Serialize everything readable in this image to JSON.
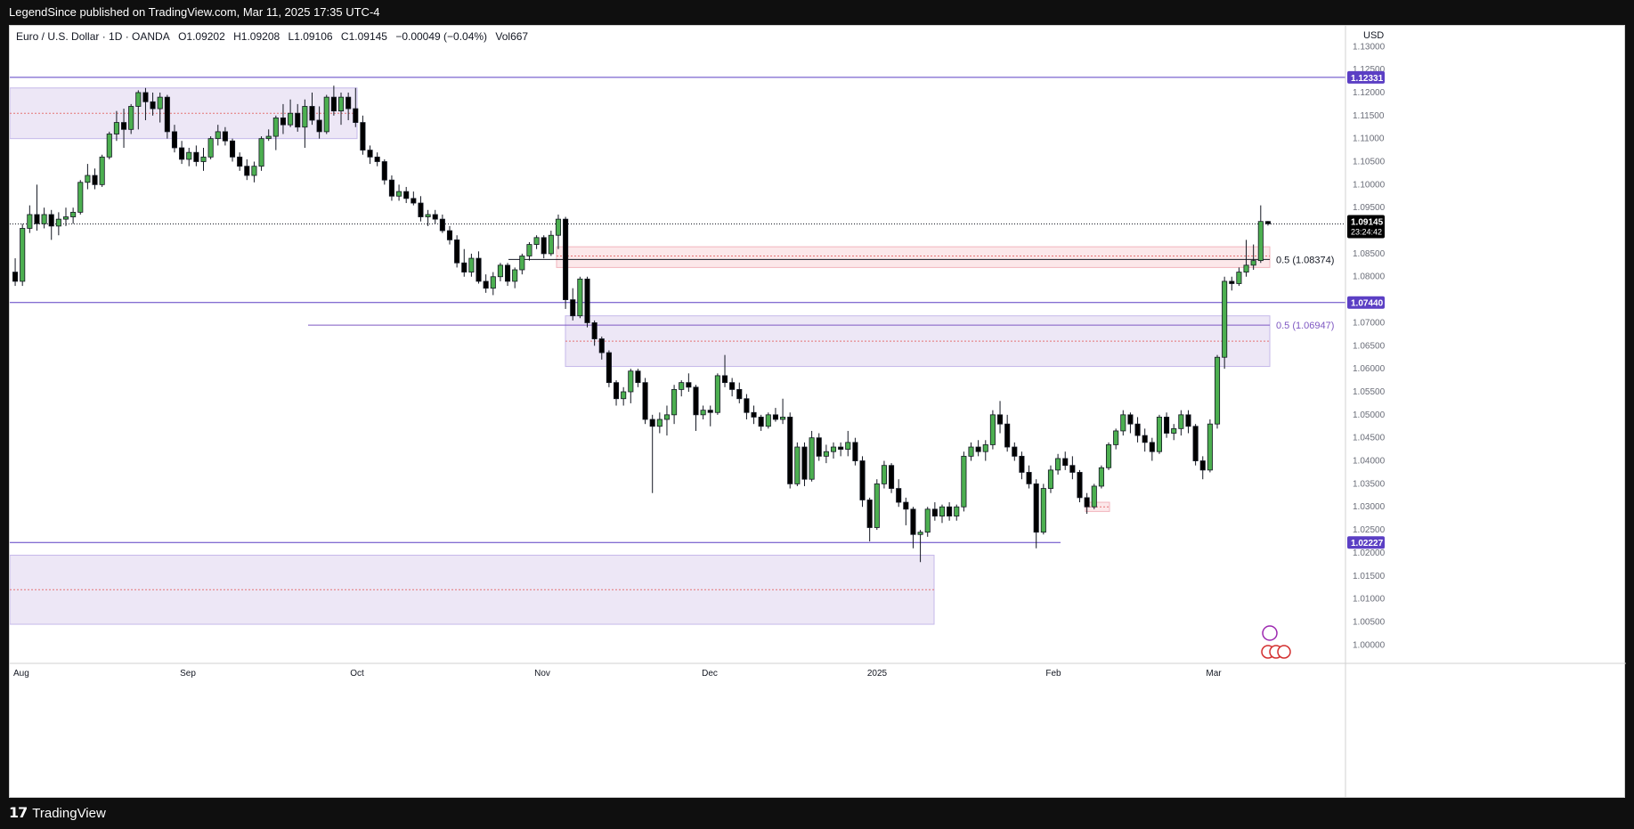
{
  "header": {
    "published_by": "LegendSince published on TradingView.com, Mar 11, 2025 17:35 UTC-4"
  },
  "legend": {
    "symbol": "Euro / U.S. Dollar · 1D · OANDA",
    "open": "O1.09202",
    "high": "H1.09208",
    "low": "L1.09106",
    "close": "C1.09145",
    "change": "−0.00049 (−0.04%)",
    "volume": "Vol667"
  },
  "footer": {
    "brand": "TradingView",
    "logo_icon": "tradingview-logo-icon"
  },
  "colors": {
    "up": "#4caf50",
    "down": "#000000",
    "zone_purple": "#ede7f6",
    "zone_red": "#fce8ea",
    "level_line": "#5b3fc4",
    "price_badge": "#000000"
  },
  "chart_data": {
    "type": "candlestick",
    "currency": "USD",
    "ylim": [
      0.996,
      1.1345
    ],
    "y_ticks": [
      "1.13000",
      "1.12500",
      "1.12000",
      "1.11500",
      "1.11000",
      "1.10500",
      "1.10000",
      "1.09500",
      "1.08500",
      "1.08000",
      "1.07000",
      "1.06500",
      "1.06000",
      "1.05500",
      "1.05000",
      "1.04500",
      "1.04000",
      "1.03500",
      "1.03000",
      "1.02500",
      "1.02000",
      "1.01500",
      "1.01000",
      "1.00500",
      "1.00000"
    ],
    "x_ticks": [
      "Aug",
      "Sep",
      "Oct",
      "Nov",
      "Dec",
      "2025",
      "Feb",
      "Mar"
    ],
    "current_price": "1.09145",
    "countdown": "23:24:42",
    "levels": [
      {
        "label": "1.12331",
        "value": 1.12331
      },
      {
        "label": "1.07440",
        "value": 1.0744
      },
      {
        "label": "1.02227",
        "value": 1.02227
      }
    ],
    "fib_labels": [
      {
        "label": "0.5 (1.08374)",
        "value": 1.08374
      },
      {
        "label": "0.5 (1.06947)",
        "value": 1.06947
      }
    ],
    "candles_ohlc": [
      [
        1.081,
        1.084,
        1.078,
        1.079
      ],
      [
        1.079,
        1.0915,
        1.078,
        1.0905
      ],
      [
        1.0905,
        1.0955,
        1.0895,
        1.0935
      ],
      [
        1.0935,
        1.1,
        1.09,
        1.0915
      ],
      [
        1.0915,
        1.095,
        1.0905,
        1.0935
      ],
      [
        1.0935,
        1.0945,
        1.088,
        1.091
      ],
      [
        1.091,
        1.094,
        1.089,
        1.0925
      ],
      [
        1.0925,
        1.095,
        1.091,
        1.093
      ],
      [
        1.093,
        1.095,
        1.0915,
        1.094
      ],
      [
        1.094,
        1.101,
        1.0935,
        1.1005
      ],
      [
        1.1005,
        1.1045,
        1.099,
        1.102
      ],
      [
        1.102,
        1.1035,
        1.099,
        1.1
      ],
      [
        1.1,
        1.1065,
        1.0995,
        1.106
      ],
      [
        1.106,
        1.1115,
        1.1055,
        1.111
      ],
      [
        1.111,
        1.116,
        1.1095,
        1.1135
      ],
      [
        1.1135,
        1.1165,
        1.108,
        1.112
      ],
      [
        1.112,
        1.1175,
        1.111,
        1.117
      ],
      [
        1.117,
        1.1205,
        1.112,
        1.12
      ],
      [
        1.12,
        1.121,
        1.114,
        1.118
      ],
      [
        1.118,
        1.12,
        1.115,
        1.1165
      ],
      [
        1.1165,
        1.12,
        1.1135,
        1.119
      ],
      [
        1.119,
        1.1195,
        1.11,
        1.1115
      ],
      [
        1.1115,
        1.113,
        1.107,
        1.108
      ],
      [
        1.108,
        1.1095,
        1.1045,
        1.1055
      ],
      [
        1.1055,
        1.108,
        1.104,
        1.107
      ],
      [
        1.107,
        1.1085,
        1.104,
        1.105
      ],
      [
        1.105,
        1.108,
        1.103,
        1.106
      ],
      [
        1.106,
        1.1105,
        1.1055,
        1.11
      ],
      [
        1.11,
        1.113,
        1.1085,
        1.1115
      ],
      [
        1.1115,
        1.1125,
        1.1085,
        1.1095
      ],
      [
        1.1095,
        1.11,
        1.105,
        1.106
      ],
      [
        1.106,
        1.107,
        1.103,
        1.104
      ],
      [
        1.104,
        1.1055,
        1.101,
        1.102
      ],
      [
        1.102,
        1.105,
        1.1005,
        1.104
      ],
      [
        1.104,
        1.1105,
        1.103,
        1.11
      ],
      [
        1.11,
        1.112,
        1.1095,
        1.1105
      ],
      [
        1.1105,
        1.115,
        1.1075,
        1.1145
      ],
      [
        1.1145,
        1.1175,
        1.111,
        1.113
      ],
      [
        1.113,
        1.1185,
        1.1125,
        1.1155
      ],
      [
        1.1155,
        1.1175,
        1.1115,
        1.1125
      ],
      [
        1.1125,
        1.1185,
        1.108,
        1.117
      ],
      [
        1.117,
        1.12,
        1.113,
        1.114
      ],
      [
        1.114,
        1.117,
        1.11,
        1.1115
      ],
      [
        1.1115,
        1.1195,
        1.111,
        1.119
      ],
      [
        1.119,
        1.1215,
        1.115,
        1.116
      ],
      [
        1.116,
        1.12,
        1.113,
        1.119
      ],
      [
        1.119,
        1.12,
        1.114,
        1.1165
      ],
      [
        1.1165,
        1.121,
        1.1125,
        1.1135
      ],
      [
        1.1135,
        1.115,
        1.1065,
        1.1075
      ],
      [
        1.1075,
        1.1085,
        1.1045,
        1.106
      ],
      [
        1.106,
        1.107,
        1.104,
        1.105
      ],
      [
        1.105,
        1.1055,
        1.1,
        1.101
      ],
      [
        1.101,
        1.102,
        1.0965,
        1.0975
      ],
      [
        1.0975,
        1.1,
        1.0965,
        1.0985
      ],
      [
        1.0985,
        1.0995,
        1.096,
        1.097
      ],
      [
        1.097,
        1.0985,
        1.0955,
        1.096
      ],
      [
        1.096,
        1.0975,
        1.092,
        1.093
      ],
      [
        1.093,
        1.0945,
        1.091,
        1.0935
      ],
      [
        1.0935,
        1.0945,
        1.0915,
        1.0925
      ],
      [
        1.0925,
        1.0935,
        1.0895,
        1.09
      ],
      [
        1.09,
        1.091,
        1.087,
        1.088
      ],
      [
        1.088,
        1.089,
        1.082,
        1.083
      ],
      [
        1.083,
        1.086,
        1.08,
        1.081
      ],
      [
        1.081,
        1.085,
        1.08,
        1.084
      ],
      [
        1.084,
        1.0855,
        1.0785,
        1.079
      ],
      [
        1.079,
        1.0805,
        1.0765,
        1.0775
      ],
      [
        1.0775,
        1.081,
        1.076,
        1.08
      ],
      [
        1.08,
        1.083,
        1.079,
        1.0825
      ],
      [
        1.0825,
        1.083,
        1.078,
        1.079
      ],
      [
        1.079,
        1.082,
        1.0775,
        1.0815
      ],
      [
        1.0815,
        1.085,
        1.0805,
        1.0845
      ],
      [
        1.0845,
        1.0875,
        1.0835,
        1.087
      ],
      [
        1.087,
        1.089,
        1.086,
        1.0885
      ],
      [
        1.0885,
        1.089,
        1.084,
        1.085
      ],
      [
        1.085,
        1.09,
        1.0845,
        1.089
      ],
      [
        1.089,
        1.0935,
        1.086,
        1.0925
      ],
      [
        1.0925,
        1.093,
        1.073,
        1.075
      ],
      [
        1.075,
        1.0775,
        1.0705,
        1.0715
      ],
      [
        1.0715,
        1.08,
        1.071,
        1.0795
      ],
      [
        1.0795,
        1.08,
        1.069,
        1.07
      ],
      [
        1.07,
        1.0705,
        1.065,
        1.0665
      ],
      [
        1.0665,
        1.067,
        1.062,
        1.0635
      ],
      [
        1.0635,
        1.064,
        1.056,
        1.057
      ],
      [
        1.057,
        1.0575,
        1.052,
        1.0535
      ],
      [
        1.0535,
        1.056,
        1.052,
        1.055
      ],
      [
        1.055,
        1.06,
        1.0525,
        1.0595
      ],
      [
        1.0595,
        1.06,
        1.056,
        1.057
      ],
      [
        1.057,
        1.058,
        1.048,
        1.049
      ],
      [
        1.049,
        1.05,
        1.033,
        1.0475
      ],
      [
        1.0475,
        1.0505,
        1.046,
        1.049
      ],
      [
        1.049,
        1.052,
        1.0455,
        1.05
      ],
      [
        1.05,
        1.0565,
        1.048,
        1.0555
      ],
      [
        1.0555,
        1.0575,
        1.054,
        1.057
      ],
      [
        1.057,
        1.059,
        1.055,
        1.056
      ],
      [
        1.056,
        1.0565,
        1.0465,
        1.05
      ],
      [
        1.05,
        1.052,
        1.049,
        1.051
      ],
      [
        1.051,
        1.052,
        1.0475,
        1.0505
      ],
      [
        1.0505,
        1.059,
        1.05,
        1.0585
      ],
      [
        1.0585,
        1.063,
        1.056,
        1.057
      ],
      [
        1.057,
        1.058,
        1.054,
        1.0555
      ],
      [
        1.0555,
        1.057,
        1.0525,
        1.0535
      ],
      [
        1.0535,
        1.0545,
        1.049,
        1.0505
      ],
      [
        1.0505,
        1.052,
        1.048,
        1.0495
      ],
      [
        1.0495,
        1.05,
        1.0465,
        1.0475
      ],
      [
        1.0475,
        1.0505,
        1.047,
        1.05
      ],
      [
        1.05,
        1.0515,
        1.0485,
        1.049
      ],
      [
        1.049,
        1.0535,
        1.048,
        1.0495
      ],
      [
        1.0495,
        1.0505,
        1.034,
        1.035
      ],
      [
        1.035,
        1.044,
        1.0345,
        1.043
      ],
      [
        1.043,
        1.044,
        1.0345,
        1.036
      ],
      [
        1.036,
        1.0465,
        1.0355,
        1.045
      ],
      [
        1.045,
        1.046,
        1.04,
        1.041
      ],
      [
        1.041,
        1.0435,
        1.0395,
        1.042
      ],
      [
        1.042,
        1.044,
        1.0405,
        1.043
      ],
      [
        1.043,
        1.044,
        1.041,
        1.0425
      ],
      [
        1.0425,
        1.0465,
        1.041,
        1.044
      ],
      [
        1.044,
        1.045,
        1.039,
        1.04
      ],
      [
        1.04,
        1.041,
        1.03,
        1.0315
      ],
      [
        1.0315,
        1.032,
        1.0225,
        1.0255
      ],
      [
        1.0255,
        1.036,
        1.025,
        1.035
      ],
      [
        1.035,
        1.04,
        1.034,
        1.039
      ],
      [
        1.039,
        1.0395,
        1.033,
        1.034
      ],
      [
        1.034,
        1.036,
        1.03,
        1.031
      ],
      [
        1.031,
        1.032,
        1.026,
        1.0295
      ],
      [
        1.0295,
        1.03,
        1.021,
        1.024
      ],
      [
        1.024,
        1.025,
        1.018,
        1.0245
      ],
      [
        1.0245,
        1.03,
        1.0235,
        1.0295
      ],
      [
        1.0295,
        1.031,
        1.027,
        1.028
      ],
      [
        1.028,
        1.0305,
        1.0265,
        1.03
      ],
      [
        1.03,
        1.031,
        1.027,
        1.028
      ],
      [
        1.028,
        1.0305,
        1.027,
        1.03
      ],
      [
        1.03,
        1.042,
        1.029,
        1.041
      ],
      [
        1.041,
        1.044,
        1.04,
        1.043
      ],
      [
        1.043,
        1.0445,
        1.041,
        1.042
      ],
      [
        1.042,
        1.0445,
        1.04,
        1.0435
      ],
      [
        1.0435,
        1.051,
        1.0425,
        1.05
      ],
      [
        1.05,
        1.053,
        1.046,
        1.048
      ],
      [
        1.048,
        1.05,
        1.042,
        1.043
      ],
      [
        1.043,
        1.044,
        1.04,
        1.041
      ],
      [
        1.041,
        1.042,
        1.036,
        1.0375
      ],
      [
        1.0375,
        1.039,
        1.034,
        1.035
      ],
      [
        1.035,
        1.036,
        1.021,
        1.0245
      ],
      [
        1.0245,
        1.035,
        1.024,
        1.034
      ],
      [
        1.034,
        1.039,
        1.033,
        1.038
      ],
      [
        1.038,
        1.0415,
        1.037,
        1.0405
      ],
      [
        1.0405,
        1.042,
        1.038,
        1.039
      ],
      [
        1.039,
        1.041,
        1.036,
        1.0375
      ],
      [
        1.0375,
        1.038,
        1.031,
        1.032
      ],
      [
        1.032,
        1.033,
        1.0285,
        1.03
      ],
      [
        1.03,
        1.035,
        1.0295,
        1.0345
      ],
      [
        1.0345,
        1.039,
        1.034,
        1.0385
      ],
      [
        1.0385,
        1.044,
        1.038,
        1.0435
      ],
      [
        1.0435,
        1.047,
        1.0425,
        1.0465
      ],
      [
        1.0465,
        1.051,
        1.0455,
        1.05
      ],
      [
        1.05,
        1.0505,
        1.046,
        1.048
      ],
      [
        1.048,
        1.0495,
        1.044,
        1.0455
      ],
      [
        1.0455,
        1.047,
        1.042,
        1.044
      ],
      [
        1.044,
        1.045,
        1.04,
        1.042
      ],
      [
        1.042,
        1.05,
        1.0415,
        1.0495
      ],
      [
        1.0495,
        1.0505,
        1.045,
        1.046
      ],
      [
        1.046,
        1.048,
        1.0445,
        1.047
      ],
      [
        1.047,
        1.051,
        1.0455,
        1.05
      ],
      [
        1.05,
        1.051,
        1.046,
        1.0475
      ],
      [
        1.0475,
        1.048,
        1.039,
        1.04
      ],
      [
        1.04,
        1.041,
        1.036,
        1.038
      ],
      [
        1.038,
        1.049,
        1.0375,
        1.048
      ],
      [
        1.048,
        1.063,
        1.047,
        1.0625
      ],
      [
        1.0625,
        1.08,
        1.06,
        1.079
      ],
      [
        1.079,
        1.08,
        1.077,
        1.0785
      ],
      [
        1.0785,
        1.082,
        1.078,
        1.081
      ],
      [
        1.081,
        1.088,
        1.08,
        1.0825
      ],
      [
        1.0825,
        1.087,
        1.0815,
        1.0835
      ],
      [
        1.0835,
        1.0955,
        1.083,
        1.092
      ],
      [
        1.092,
        1.0921,
        1.0911,
        1.0915
      ]
    ]
  }
}
